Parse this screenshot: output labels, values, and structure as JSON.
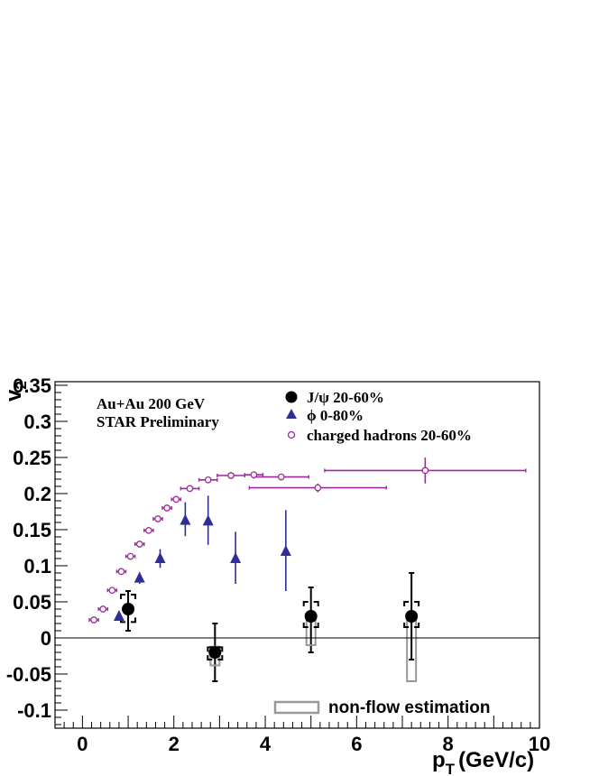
{
  "chart_data": {
    "type": "scatter",
    "ylabel": "v",
    "ylabel_sub": "2",
    "xlabel_main": "p",
    "xlabel_sub": "T",
    "xlabel_unit": "(GeV/c)",
    "xlim": [
      -0.6,
      10
    ],
    "ylim": [
      -0.125,
      0.355
    ],
    "x_ticks": [
      0,
      2,
      4,
      6,
      8,
      10
    ],
    "x_tick_labels": [
      "0",
      "2",
      "4",
      "6",
      "8",
      "10"
    ],
    "y_ticks": [
      -0.1,
      -0.05,
      0,
      0.05,
      0.1,
      0.15,
      0.2,
      0.25,
      0.3,
      0.35
    ],
    "y_tick_labels": [
      "-0.1",
      "-0.05",
      "0",
      "0.05",
      "0.1",
      "0.15",
      "0.2",
      "0.25",
      "0.3",
      "0.35"
    ],
    "annotations": [
      "Au+Au 200 GeV",
      "STAR Preliminary"
    ],
    "legend_position": "top-right",
    "series": [
      {
        "name": "J/ψ 20-60%",
        "marker": "filled-circle",
        "color": "#000000",
        "points": [
          {
            "x": 1.0,
            "y": 0.04,
            "yerr_lo": 0.03,
            "yerr_hi": 0.025,
            "sys_lo": 0.022,
            "sys_hi": 0.06
          },
          {
            "x": 2.9,
            "y": -0.02,
            "yerr_lo": 0.04,
            "yerr_hi": 0.04,
            "sys_lo": -0.03,
            "sys_hi": -0.013
          },
          {
            "x": 5.0,
            "y": 0.03,
            "yerr_lo": 0.05,
            "yerr_hi": 0.04,
            "sys_lo": 0.015,
            "sys_hi": 0.05
          },
          {
            "x": 7.2,
            "y": 0.03,
            "yerr_lo": 0.06,
            "yerr_hi": 0.06,
            "sys_lo": 0.015,
            "sys_hi": 0.05
          }
        ]
      },
      {
        "name": "ϕ 0-80%",
        "marker": "filled-triangle",
        "color": "#2e2e96",
        "points": [
          {
            "x": 0.8,
            "y": 0.03,
            "yerr_lo": 0.006,
            "yerr_hi": 0.006
          },
          {
            "x": 1.25,
            "y": 0.083,
            "yerr_lo": 0.008,
            "yerr_hi": 0.008
          },
          {
            "x": 1.7,
            "y": 0.11,
            "yerr_lo": 0.013,
            "yerr_hi": 0.013
          },
          {
            "x": 2.25,
            "y": 0.163,
            "yerr_lo": 0.022,
            "yerr_hi": 0.025
          },
          {
            "x": 2.75,
            "y": 0.162,
            "yerr_lo": 0.033,
            "yerr_hi": 0.035
          },
          {
            "x": 3.35,
            "y": 0.11,
            "yerr_lo": 0.035,
            "yerr_hi": 0.037
          },
          {
            "x": 4.45,
            "y": 0.12,
            "yerr_lo": 0.055,
            "yerr_hi": 0.057
          }
        ]
      },
      {
        "name": "charged hadrons 20-60%",
        "marker": "open-circle",
        "color": "#9b2a9b",
        "points": [
          {
            "x": 0.25,
            "y": 0.025,
            "xerr": 0.1,
            "yerr": 0.001
          },
          {
            "x": 0.45,
            "y": 0.04,
            "xerr": 0.1,
            "yerr": 0.001
          },
          {
            "x": 0.65,
            "y": 0.066,
            "xerr": 0.1,
            "yerr": 0.001
          },
          {
            "x": 0.85,
            "y": 0.092,
            "xerr": 0.1,
            "yerr": 0.001
          },
          {
            "x": 1.05,
            "y": 0.113,
            "xerr": 0.1,
            "yerr": 0.001
          },
          {
            "x": 1.25,
            "y": 0.13,
            "xerr": 0.1,
            "yerr": 0.001
          },
          {
            "x": 1.45,
            "y": 0.149,
            "xerr": 0.1,
            "yerr": 0.001
          },
          {
            "x": 1.65,
            "y": 0.165,
            "xerr": 0.1,
            "yerr": 0.001
          },
          {
            "x": 1.85,
            "y": 0.18,
            "xerr": 0.1,
            "yerr": 0.001
          },
          {
            "x": 2.05,
            "y": 0.192,
            "xerr": 0.1,
            "yerr": 0.001
          },
          {
            "x": 2.35,
            "y": 0.207,
            "xerr": 0.2,
            "yerr": 0.002
          },
          {
            "x": 2.75,
            "y": 0.219,
            "xerr": 0.2,
            "yerr": 0.002
          },
          {
            "x": 3.25,
            "y": 0.225,
            "xerr": 0.3,
            "yerr": 0.003
          },
          {
            "x": 3.75,
            "y": 0.226,
            "xerr": 0.2,
            "yerr": 0.003
          },
          {
            "x": 4.35,
            "y": 0.223,
            "xerr": 0.6,
            "yerr": 0.004
          },
          {
            "x": 5.15,
            "y": 0.208,
            "xerr": 1.5,
            "yerr": 0.006
          },
          {
            "x": 7.5,
            "y": 0.232,
            "xerr": 2.2,
            "yerr": 0.018
          }
        ]
      }
    ],
    "nonflow_estimation": {
      "label": "non-flow estimation",
      "color": "#999999",
      "boxes": [
        {
          "x": 2.9,
          "y_lo": -0.038,
          "y_hi": -0.012
        },
        {
          "x": 5.0,
          "y_lo": -0.01,
          "y_hi": 0.03
        },
        {
          "x": 7.2,
          "y_lo": -0.06,
          "y_hi": 0.03
        }
      ]
    }
  }
}
